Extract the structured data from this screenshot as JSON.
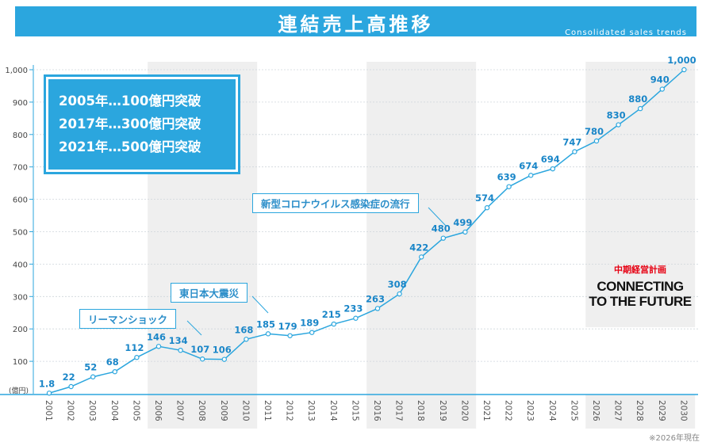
{
  "header": {
    "title": "連結売上高推移",
    "subtitle": "Consolidated sales trends",
    "color": "#2ba6de"
  },
  "milestones": [
    "2005年…100億円突破",
    "2017年…300億円突破",
    "2021年…500億円突破"
  ],
  "callouts": {
    "lehman": "リーマンショック",
    "earthquake": "東日本大震災",
    "corona": "新型コロナウイルス感染症の流行"
  },
  "plan": {
    "label": "中期経営計画",
    "slogan_line1": "CONNECTING",
    "slogan_line2": "TO THE FUTURE"
  },
  "footnote": "※2026年現在",
  "chart_data": {
    "type": "line",
    "categories": [
      "2001",
      "2002",
      "2003",
      "2004",
      "2005",
      "2006",
      "2007",
      "2008",
      "2009",
      "2010",
      "2011",
      "2012",
      "2013",
      "2014",
      "2015",
      "2016",
      "2017",
      "2018",
      "2019",
      "2020",
      "2021",
      "2022",
      "2023",
      "2024",
      "2025",
      "2026",
      "2027",
      "2028",
      "2029",
      "2030"
    ],
    "values": [
      1.8,
      22,
      52,
      68,
      112,
      146,
      134,
      107,
      106,
      168,
      185,
      179,
      189,
      215,
      233,
      263,
      308,
      422,
      480,
      499,
      574,
      639,
      674,
      694,
      747,
      780,
      830,
      880,
      940,
      1000
    ],
    "data_labels": [
      "1.8",
      "22",
      "52",
      "68",
      "112",
      "146",
      "134",
      "107",
      "106",
      "168",
      "185",
      "179",
      "189",
      "215",
      "233",
      "263",
      "308",
      "422",
      "480",
      "499",
      "574",
      "639",
      "674",
      "694",
      "747",
      "780",
      "830",
      "880",
      "940",
      "1,000"
    ],
    "ylim": [
      0,
      1000
    ],
    "yticks": [
      100,
      200,
      300,
      400,
      500,
      600,
      700,
      800,
      900,
      1000
    ],
    "ytick_labels": [
      "100",
      "200",
      "300",
      "400",
      "500",
      "600",
      "700",
      "800",
      "900",
      "1,000"
    ],
    "yunit": "(億円)",
    "shaded_ranges": [
      [
        "2006",
        "2010"
      ],
      [
        "2016",
        "2020"
      ],
      [
        "2026",
        "2030"
      ]
    ],
    "grid": true,
    "line_color": "#2ba6de",
    "label_color": "#1a86c8"
  }
}
